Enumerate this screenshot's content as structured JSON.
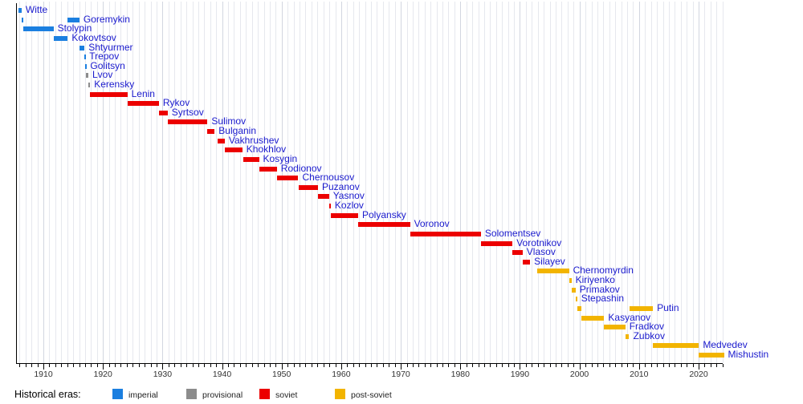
{
  "chart_data": {
    "type": "bar",
    "subtype": "gantt-timeline",
    "xlim": [
      1905.4,
      2024.3
    ],
    "x_ticks": [
      1910,
      1920,
      1930,
      1940,
      1950,
      1960,
      1970,
      1980,
      1990,
      2000,
      2010,
      2020
    ],
    "x_minor_tick_every_years": 1,
    "grid": "vertical-yearly",
    "legend_position": "bottom",
    "eras": {
      "imperial": "#1b7fe0",
      "provisional": "#8c8c8c",
      "soviet": "#ec0000",
      "post-soviet": "#f2b400"
    },
    "label_color": "#1a1acd",
    "people": [
      {
        "name": "Witte",
        "era": "imperial",
        "segments": [
          [
            1905.75,
            1906.35
          ]
        ]
      },
      {
        "name": "Goremykin",
        "era": "imperial",
        "segments": [
          [
            1906.35,
            1906.65
          ],
          [
            1914.1,
            1916.05
          ]
        ]
      },
      {
        "name": "Stolypin",
        "era": "imperial",
        "segments": [
          [
            1906.65,
            1911.7
          ]
        ]
      },
      {
        "name": "Kokovtsov",
        "era": "imperial",
        "segments": [
          [
            1911.7,
            1914.1
          ]
        ]
      },
      {
        "name": "Shtyurmer",
        "era": "imperial",
        "segments": [
          [
            1916.05,
            1916.9
          ]
        ]
      },
      {
        "name": "Trepov",
        "era": "imperial",
        "segments": [
          [
            1916.85,
            1917.05
          ]
        ]
      },
      {
        "name": "Golitsyn",
        "era": "imperial",
        "segments": [
          [
            1917.05,
            1917.2
          ]
        ]
      },
      {
        "name": "Lvov",
        "era": "provisional",
        "segments": [
          [
            1917.2,
            1917.55
          ]
        ]
      },
      {
        "name": "Kerensky",
        "era": "provisional",
        "segments": [
          [
            1917.55,
            1917.85
          ]
        ]
      },
      {
        "name": "Lenin",
        "era": "soviet",
        "segments": [
          [
            1917.85,
            1924.1
          ]
        ]
      },
      {
        "name": "Rykov",
        "era": "soviet",
        "segments": [
          [
            1924.1,
            1929.4
          ]
        ]
      },
      {
        "name": "Syrtsov",
        "era": "soviet",
        "segments": [
          [
            1929.4,
            1930.85
          ]
        ]
      },
      {
        "name": "Sulimov",
        "era": "soviet",
        "segments": [
          [
            1930.85,
            1937.55
          ]
        ]
      },
      {
        "name": "Bulganin",
        "era": "soviet",
        "segments": [
          [
            1937.55,
            1938.75
          ]
        ]
      },
      {
        "name": "Vakhrushev",
        "era": "soviet",
        "segments": [
          [
            1939.2,
            1940.45
          ]
        ]
      },
      {
        "name": "Khokhlov",
        "era": "soviet",
        "segments": [
          [
            1940.45,
            1943.4
          ]
        ]
      },
      {
        "name": "Kosygin",
        "era": "soviet",
        "segments": [
          [
            1943.5,
            1946.2
          ]
        ]
      },
      {
        "name": "Rodionov",
        "era": "soviet",
        "segments": [
          [
            1946.2,
            1949.2
          ]
        ]
      },
      {
        "name": "Chernousov",
        "era": "soviet",
        "segments": [
          [
            1949.2,
            1952.8
          ]
        ]
      },
      {
        "name": "Puzanov",
        "era": "soviet",
        "segments": [
          [
            1952.8,
            1956.1
          ]
        ]
      },
      {
        "name": "Yasnov",
        "era": "soviet",
        "segments": [
          [
            1956.1,
            1957.95
          ]
        ]
      },
      {
        "name": "Kozlov",
        "era": "soviet",
        "segments": [
          [
            1957.95,
            1958.25
          ]
        ]
      },
      {
        "name": "Polyansky",
        "era": "soviet",
        "segments": [
          [
            1958.25,
            1962.85
          ]
        ]
      },
      {
        "name": "Voronov",
        "era": "soviet",
        "segments": [
          [
            1962.85,
            1971.55
          ]
        ]
      },
      {
        "name": "Solomentsev",
        "era": "soviet",
        "segments": [
          [
            1971.55,
            1983.45
          ]
        ]
      },
      {
        "name": "Vorotnikov",
        "era": "soviet",
        "segments": [
          [
            1983.45,
            1988.75
          ]
        ]
      },
      {
        "name": "Vlasov",
        "era": "soviet",
        "segments": [
          [
            1988.75,
            1990.45
          ]
        ]
      },
      {
        "name": "Silayev",
        "era": "soviet",
        "segments": [
          [
            1990.45,
            1991.7
          ]
        ]
      },
      {
        "name": "Chernomyrdin",
        "era": "post-soviet",
        "segments": [
          [
            1992.95,
            1998.25
          ]
        ]
      },
      {
        "name": "Kiriyenko",
        "era": "post-soviet",
        "segments": [
          [
            1998.3,
            1998.65
          ]
        ]
      },
      {
        "name": "Primakov",
        "era": "post-soviet",
        "segments": [
          [
            1998.7,
            1999.35
          ]
        ]
      },
      {
        "name": "Stepashin",
        "era": "post-soviet",
        "segments": [
          [
            1999.35,
            1999.6
          ]
        ]
      },
      {
        "name": "Putin",
        "era": "post-soviet",
        "segments": [
          [
            1999.6,
            2000.35
          ],
          [
            2008.35,
            2012.35
          ]
        ]
      },
      {
        "name": "Kasyanov",
        "era": "post-soviet",
        "segments": [
          [
            2000.35,
            2004.15
          ]
        ]
      },
      {
        "name": "Fradkov",
        "era": "post-soviet",
        "segments": [
          [
            2004.15,
            2007.7
          ]
        ]
      },
      {
        "name": "Zubkov",
        "era": "post-soviet",
        "segments": [
          [
            2007.7,
            2008.35
          ]
        ]
      },
      {
        "name": "Medvedev",
        "era": "post-soviet",
        "segments": [
          [
            2012.35,
            2020.05
          ]
        ]
      },
      {
        "name": "Mishustin",
        "era": "post-soviet",
        "segments": [
          [
            2020.05,
            2024.25
          ]
        ]
      }
    ]
  },
  "legend": {
    "title": "Historical eras:",
    "items": [
      {
        "key": "imperial",
        "label": "imperial",
        "color": "#1b7fe0"
      },
      {
        "key": "provisional",
        "label": "provisional",
        "color": "#8c8c8c"
      },
      {
        "key": "soviet",
        "label": "soviet",
        "color": "#ec0000"
      },
      {
        "key": "post-soviet",
        "label": "post-soviet",
        "color": "#f2b400"
      }
    ]
  }
}
